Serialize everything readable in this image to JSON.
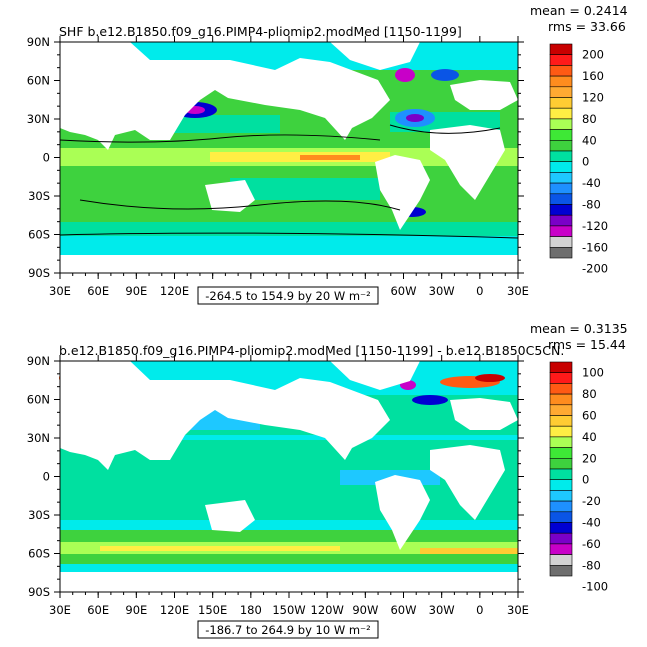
{
  "panels": [
    {
      "title": "SHF b.e12.B1850.f09_g16.PIMP4-pliomip2.modMed [1150-1199]",
      "stats": {
        "mean": "mean = 0.2414",
        "rms": "rms = 33.66"
      },
      "range_label": "-264.5 to 154.9 by 20  W m⁻²",
      "lat_labels": [
        "90N",
        "60N",
        "30N",
        "0",
        "30S",
        "60S",
        "90S"
      ],
      "lon_labels": [
        "30E",
        "60E",
        "90E",
        "120E",
        "150E",
        "180",
        "150W",
        "120W",
        "90W",
        "60W",
        "30W",
        "0",
        "30E"
      ],
      "colorbar": {
        "labels": [
          "200",
          "160",
          "120",
          "80",
          "40",
          "0",
          "-40",
          "-80",
          "-120",
          "-160",
          "-200"
        ],
        "colors": [
          "#c80000",
          "#ff1a1a",
          "#ff5a14",
          "#ff8c1e",
          "#ffaa32",
          "#ffcc33",
          "#ffee44",
          "#aaff55",
          "#3ee836",
          "#3ed23e",
          "#00e0a0",
          "#00ebeb",
          "#1ec8ff",
          "#1e90ff",
          "#0a55e6",
          "#0000d2",
          "#7a00c8",
          "#c800c8",
          "#d2d2d2",
          "#6e6e6e"
        ]
      }
    },
    {
      "title": "b.e12.B1850.f09_g16.PIMP4-pliomip2.modMed [1150-1199] - b.e12.B1850C5CN.",
      "stats": {
        "mean": "mean = 0.3135",
        "rms": "rms = 15.44"
      },
      "range_label": "-186.7 to 264.9 by 10  W m⁻²",
      "lat_labels": [
        "90N",
        "60N",
        "30N",
        "0",
        "30S",
        "60S",
        "90S"
      ],
      "lon_labels": [
        "30E",
        "60E",
        "90E",
        "120E",
        "150E",
        "180",
        "150W",
        "120W",
        "90W",
        "60W",
        "30W",
        "0",
        "30E"
      ],
      "colorbar": {
        "labels": [
          "100",
          "80",
          "60",
          "40",
          "20",
          "0",
          "-20",
          "-40",
          "-60",
          "-80",
          "-100"
        ],
        "colors": [
          "#c80000",
          "#ff1a1a",
          "#ff5a14",
          "#ff8c1e",
          "#ffaa32",
          "#ffcc33",
          "#ffee44",
          "#aaff55",
          "#3ee836",
          "#3ed23e",
          "#00e0a0",
          "#00ebeb",
          "#1ec8ff",
          "#1e90ff",
          "#0a55e6",
          "#0000d2",
          "#7a00c8",
          "#c800c8",
          "#d2d2d2",
          "#6e6e6e"
        ]
      }
    }
  ]
}
